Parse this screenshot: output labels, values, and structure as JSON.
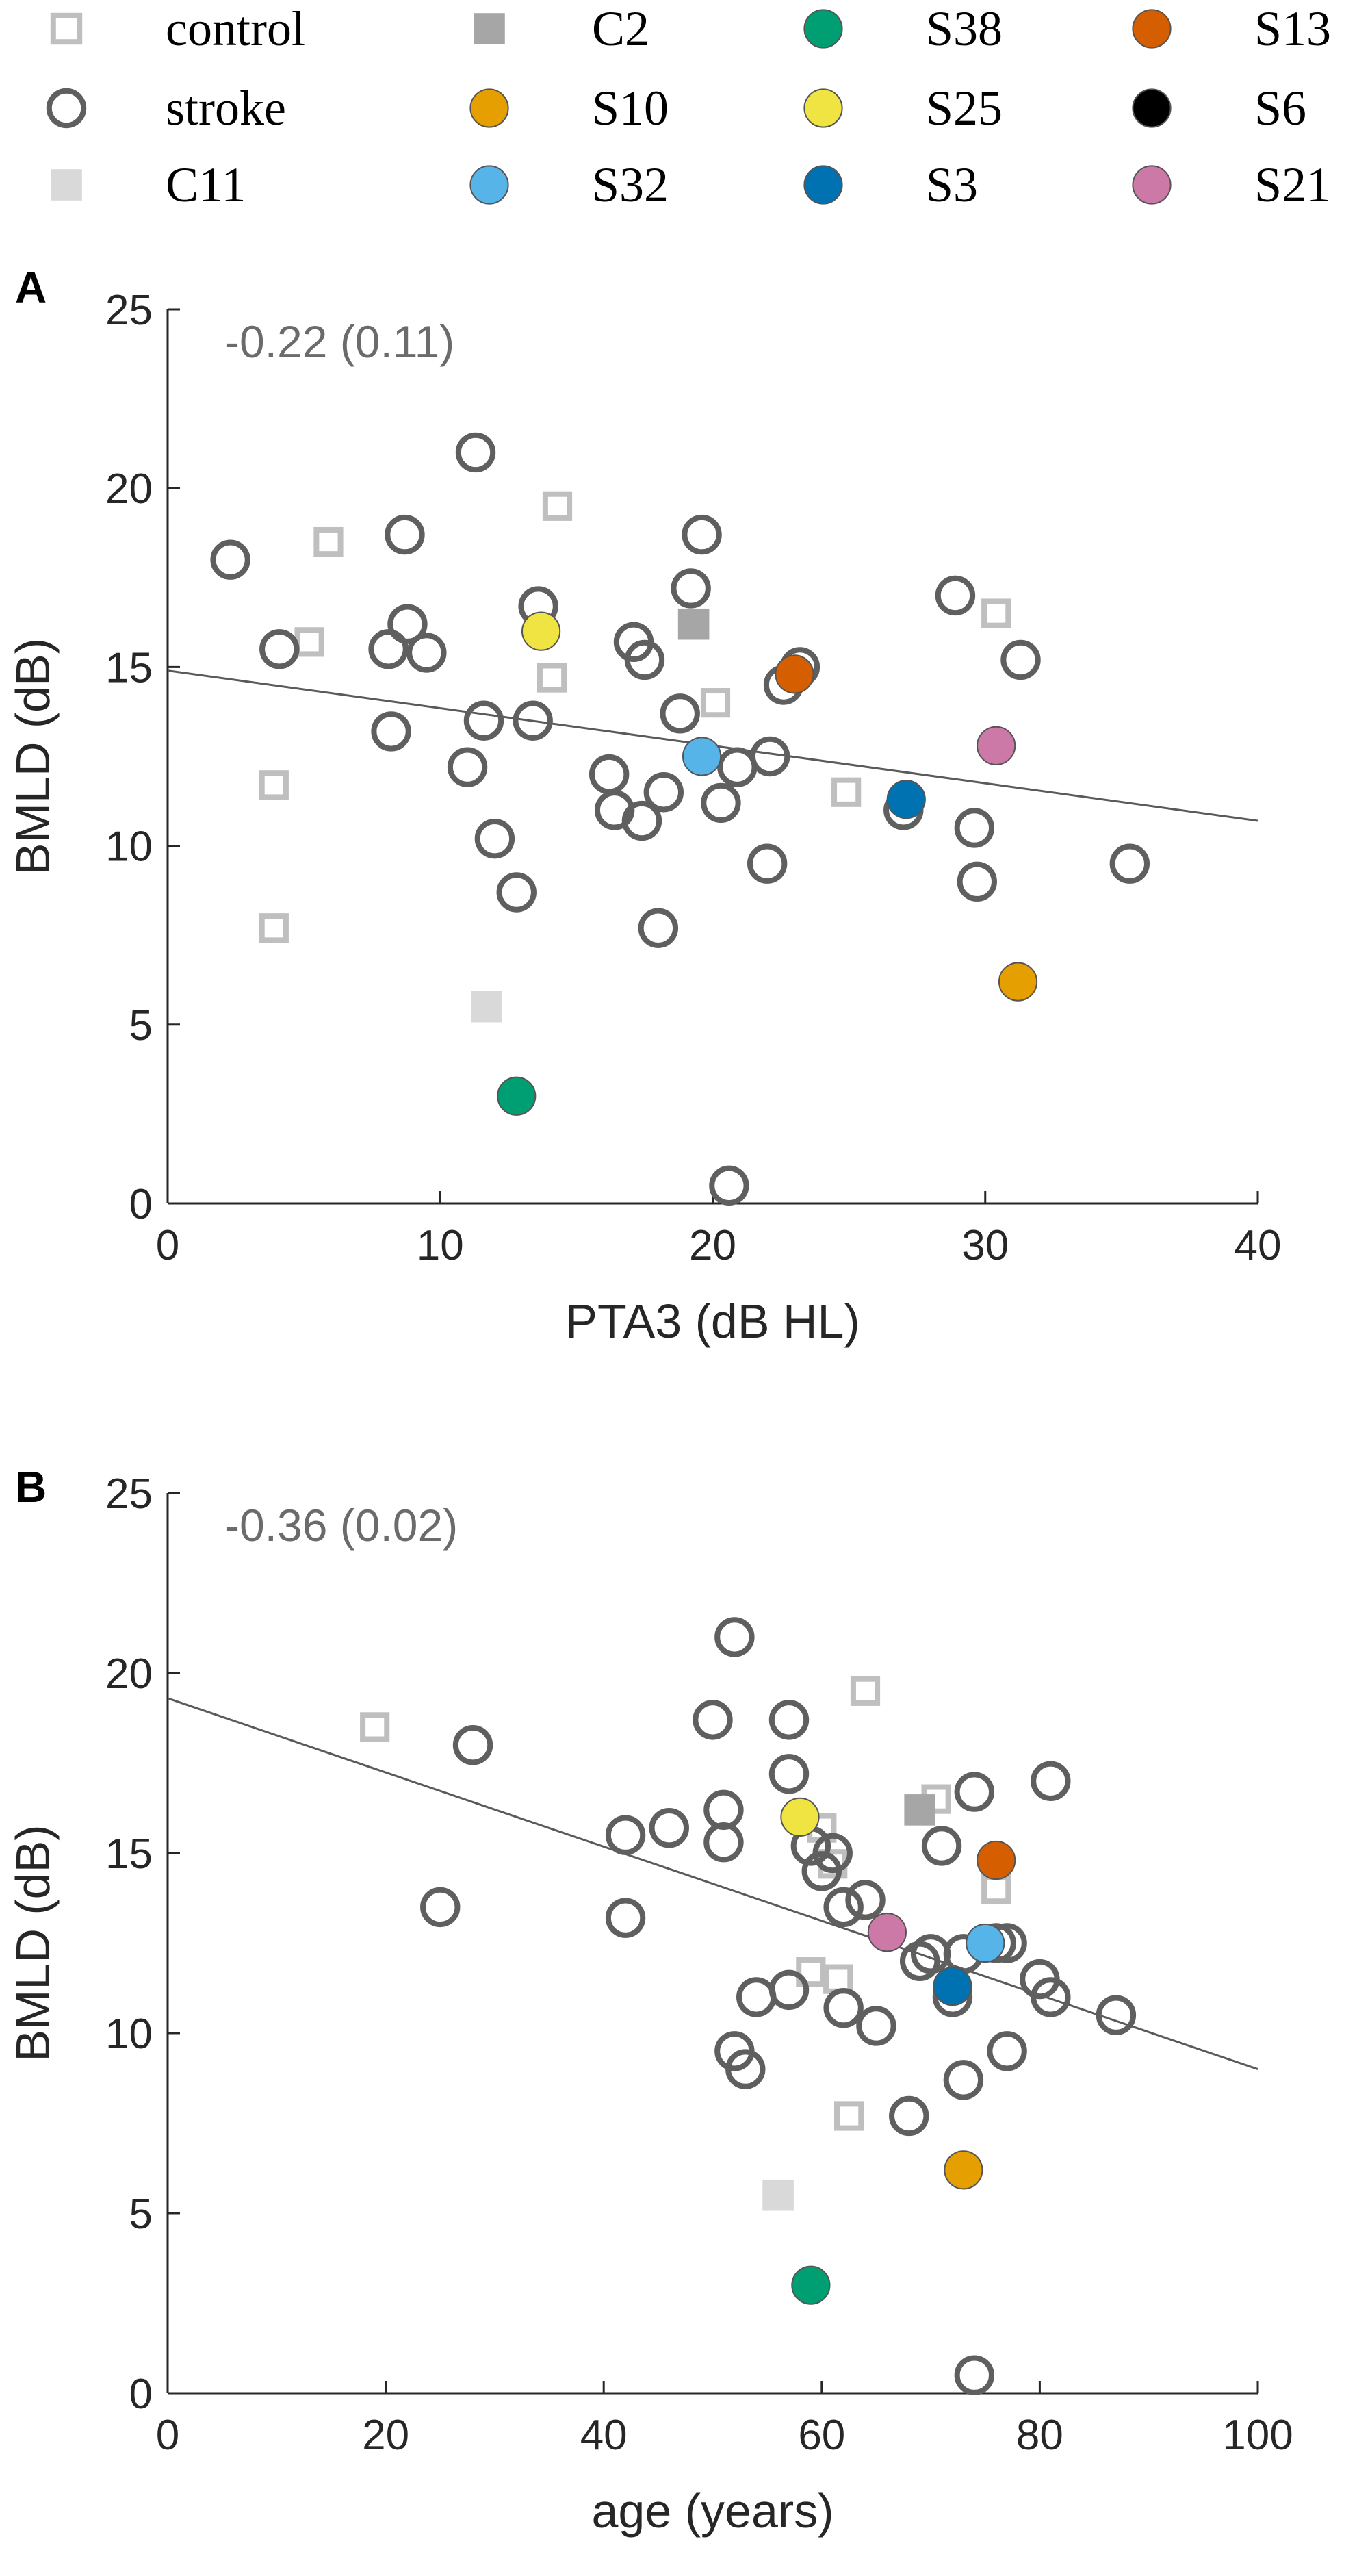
{
  "chart_data": {
    "type": "scatter",
    "legend": {
      "placement": "top",
      "entries": [
        {
          "label": "control",
          "marker": "square-open",
          "color": "#bfbfbf"
        },
        {
          "label": "stroke",
          "marker": "circle-open",
          "color": "#5f5f5f"
        },
        {
          "label": "C11",
          "marker": "square-filled",
          "color": "#d9d9d9"
        },
        {
          "label": "C2",
          "marker": "square-filled",
          "color": "#a6a6a6"
        },
        {
          "label": "S10",
          "marker": "circle-filled",
          "color": "#e69f00"
        },
        {
          "label": "S32",
          "marker": "circle-filled",
          "color": "#56b4e9"
        },
        {
          "label": "S38",
          "marker": "circle-filled",
          "color": "#009e73"
        },
        {
          "label": "S25",
          "marker": "circle-filled",
          "color": "#f0e442"
        },
        {
          "label": "S3",
          "marker": "circle-filled",
          "color": "#0072b2"
        },
        {
          "label": "S13",
          "marker": "circle-filled",
          "color": "#d55e00"
        },
        {
          "label": "S6",
          "marker": "circle-filled",
          "color": "#000000"
        },
        {
          "label": "S21",
          "marker": "circle-filled",
          "color": "#cc79a7"
        }
      ]
    },
    "panels": [
      {
        "label": "A",
        "annotation": "-0.22 (0.11)",
        "xlabel": "PTA3 (dB HL)",
        "ylabel": "BMLD (dB)",
        "xlim": [
          0,
          40
        ],
        "ylim": [
          0,
          25
        ],
        "xticks": [
          0,
          10,
          20,
          30,
          40
        ],
        "yticks": [
          0,
          5,
          10,
          15,
          20,
          25
        ],
        "fit_line": {
          "x": [
            0,
            40
          ],
          "y": [
            14.9,
            10.7
          ]
        },
        "control": [
          [
            5.2,
            15.7
          ],
          [
            5.9,
            18.5
          ],
          [
            3.9,
            11.7
          ],
          [
            3.9,
            7.7
          ],
          [
            14.3,
            19.5
          ],
          [
            14.1,
            14.7
          ],
          [
            20.1,
            14.0
          ],
          [
            24.9,
            11.5
          ],
          [
            30.4,
            16.5
          ]
        ],
        "stroke": [
          [
            2.3,
            18.0
          ],
          [
            4.1,
            15.5
          ],
          [
            8.2,
            13.2
          ],
          [
            8.1,
            15.5
          ],
          [
            8.8,
            16.2
          ],
          [
            8.7,
            18.7
          ],
          [
            9.5,
            15.4
          ],
          [
            11.3,
            21.0
          ],
          [
            11.6,
            13.5
          ],
          [
            11.0,
            12.2
          ],
          [
            12.0,
            10.2
          ],
          [
            12.8,
            8.7
          ],
          [
            13.4,
            13.5
          ],
          [
            13.6,
            16.7
          ],
          [
            16.2,
            12.0
          ],
          [
            16.4,
            11.0
          ],
          [
            17.1,
            15.7
          ],
          [
            17.5,
            15.2
          ],
          [
            17.4,
            10.7
          ],
          [
            18.2,
            11.5
          ],
          [
            18.0,
            7.7
          ],
          [
            18.8,
            13.7
          ],
          [
            19.2,
            17.2
          ],
          [
            19.6,
            18.7
          ],
          [
            20.3,
            11.2
          ],
          [
            20.9,
            12.2
          ],
          [
            22.1,
            12.5
          ],
          [
            22.0,
            9.5
          ],
          [
            22.6,
            14.5
          ],
          [
            23.2,
            15.0
          ],
          [
            27.0,
            11.0
          ],
          [
            28.9,
            17.0
          ],
          [
            29.6,
            10.5
          ],
          [
            29.7,
            9.0
          ],
          [
            31.3,
            15.2
          ],
          [
            35.3,
            9.5
          ],
          [
            20.6,
            0.5
          ]
        ],
        "C11": [
          11.7,
          5.5
        ],
        "C2": [
          19.3,
          16.2
        ],
        "S10": [
          31.2,
          6.2
        ],
        "S32": [
          19.6,
          12.5
        ],
        "S38": [
          12.8,
          3.0
        ],
        "S25": [
          13.7,
          16.0
        ],
        "S3": [
          27.1,
          11.3
        ],
        "S13": [
          23.0,
          14.8
        ],
        "S21": [
          30.4,
          12.8
        ]
      },
      {
        "label": "B",
        "annotation": "-0.36 (0.02)",
        "xlabel": "age (years)",
        "ylabel": "BMLD (dB)",
        "xlim": [
          0,
          100
        ],
        "ylim": [
          0,
          25
        ],
        "xticks": [
          0,
          20,
          40,
          60,
          80,
          100
        ],
        "yticks": [
          0,
          5,
          10,
          15,
          20,
          25
        ],
        "fit_line": {
          "x": [
            0,
            100
          ],
          "y": [
            19.3,
            9.0
          ]
        },
        "control": [
          [
            19.0,
            18.5
          ],
          [
            64.0,
            19.5
          ],
          [
            59.0,
            11.7
          ],
          [
            60.0,
            15.7
          ],
          [
            61.0,
            14.7
          ],
          [
            61.5,
            11.5
          ],
          [
            62.5,
            7.7
          ],
          [
            70.5,
            16.5
          ],
          [
            76.0,
            14.0
          ]
        ],
        "stroke": [
          [
            28.0,
            18.0
          ],
          [
            25.0,
            13.5
          ],
          [
            42.0,
            15.5
          ],
          [
            42.0,
            13.2
          ],
          [
            46.0,
            15.7
          ],
          [
            50.0,
            18.7
          ],
          [
            51.0,
            16.2
          ],
          [
            51.0,
            15.3
          ],
          [
            52.0,
            21.0
          ],
          [
            52.0,
            9.5
          ],
          [
            53.0,
            9.0
          ],
          [
            54.0,
            11.0
          ],
          [
            57.0,
            17.2
          ],
          [
            57.0,
            18.7
          ],
          [
            57.0,
            11.2
          ],
          [
            59.0,
            15.2
          ],
          [
            60.0,
            14.5
          ],
          [
            61.0,
            15.0
          ],
          [
            62.0,
            13.5
          ],
          [
            62.0,
            10.7
          ],
          [
            64.0,
            13.7
          ],
          [
            65.0,
            10.2
          ],
          [
            68.0,
            7.7
          ],
          [
            69.0,
            12.0
          ],
          [
            70.0,
            12.2
          ],
          [
            71.0,
            15.2
          ],
          [
            72.0,
            11.0
          ],
          [
            73.0,
            8.7
          ],
          [
            73.0,
            12.2
          ],
          [
            74.0,
            16.7
          ],
          [
            76.0,
            12.5
          ],
          [
            77.0,
            9.5
          ],
          [
            77.0,
            12.5
          ],
          [
            80.0,
            11.5
          ],
          [
            81.0,
            11.0
          ],
          [
            81.0,
            17.0
          ],
          [
            87.0,
            10.5
          ],
          [
            74.0,
            0.5
          ]
        ],
        "C11": [
          56.0,
          5.5
        ],
        "C2": [
          69.0,
          16.2
        ],
        "S10": [
          73.0,
          6.2
        ],
        "S32": [
          75.0,
          12.5
        ],
        "S38": [
          59.0,
          3.0
        ],
        "S25": [
          58.0,
          16.0
        ],
        "S3": [
          72.0,
          11.3
        ],
        "S13": [
          76.0,
          14.8
        ],
        "S21": [
          66.0,
          12.8
        ]
      }
    ]
  }
}
